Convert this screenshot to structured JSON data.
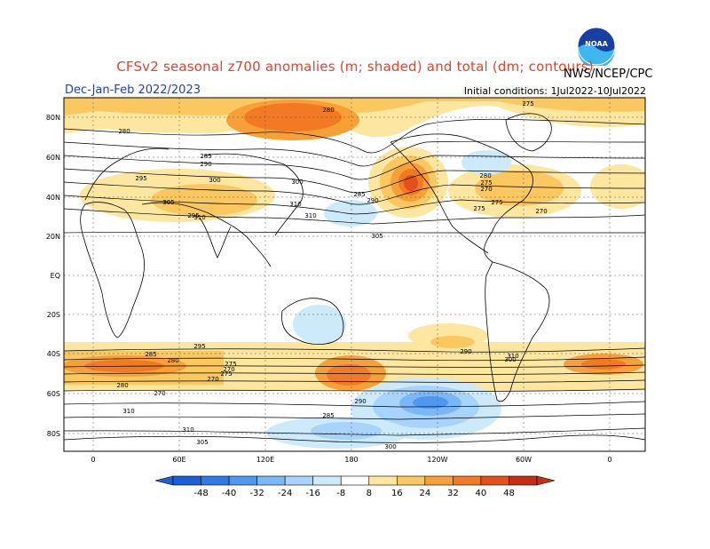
{
  "header": {
    "title": "CFSv2 seasonal z700 anomalies (m; shaded) and total (dm; contours)",
    "season": "Dec-Jan-Feb 2022/2023",
    "initial_conditions": "Initial conditions: 1Jul2022-10Jul2022",
    "agency": "NWS/NCEP/CPC",
    "logo_text": "NOAA"
  },
  "axes": {
    "lat_labels": [
      "80N",
      "60N",
      "40N",
      "20N",
      "EQ",
      "20S",
      "40S",
      "60S",
      "80S"
    ],
    "lon_labels": [
      "0",
      "60E",
      "120E",
      "180",
      "120W",
      "60W",
      "0"
    ]
  },
  "contour_labels": [
    "280",
    "275",
    "280",
    "285",
    "290",
    "295",
    "300",
    "305",
    "310",
    "310",
    "310",
    "305",
    "300",
    "295",
    "290",
    "285",
    "280",
    "275",
    "270",
    "270",
    "275",
    "275",
    "270",
    "310",
    "310",
    "305",
    "300",
    "295",
    "290",
    "285",
    "280",
    "275",
    "270",
    "275",
    "270",
    "280",
    "285",
    "290",
    "300",
    "310"
  ],
  "colorbar": {
    "ticks": [
      "-48",
      "-40",
      "-32",
      "-24",
      "-16",
      "-8",
      "8",
      "16",
      "24",
      "32",
      "40",
      "48"
    ],
    "colors": [
      "#1a5fd8",
      "#2f7ae8",
      "#4f97f0",
      "#7bb6f6",
      "#a8d3fa",
      "#cdeafb",
      "#ffffff",
      "#fde6a0",
      "#fbc760",
      "#f8a038",
      "#f27a25",
      "#e2501c",
      "#c42f14"
    ]
  }
}
